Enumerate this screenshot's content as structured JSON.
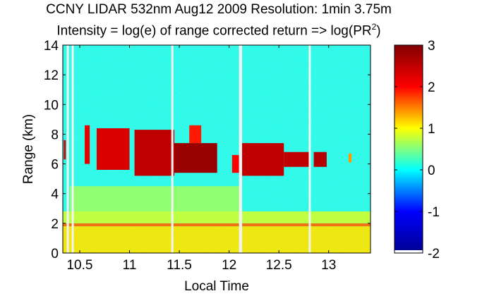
{
  "chart_data": {
    "type": "heatmap",
    "title": "CCNY LIDAR 532nm Aug12 2009 Resolution: 1min 3.75m",
    "subtitle_prefix": "Intensity = log(e) of range corrected return => log(PR",
    "subtitle_sup": "2",
    "subtitle_suffix": ")",
    "xlabel": "Local Time",
    "ylabel": "Range (km)",
    "xlim": [
      10.33,
      13.42
    ],
    "ylim": [
      0,
      14
    ],
    "xticks": [
      10.5,
      11,
      11.5,
      12,
      12.5,
      13
    ],
    "xtick_labels": [
      "10.5",
      "11",
      "11.5",
      "12",
      "12.5",
      "13"
    ],
    "yticks": [
      0,
      2,
      4,
      6,
      8,
      10,
      12,
      14
    ],
    "ytick_labels": [
      "0",
      "2",
      "4",
      "6",
      "8",
      "10",
      "12",
      "14"
    ],
    "colorbar": {
      "range": [
        -2,
        3
      ],
      "ticks": [
        -2,
        -1,
        0,
        1,
        2,
        3
      ],
      "tick_labels": [
        "-2",
        "-1",
        "0",
        "1",
        "2",
        "3"
      ],
      "colormap": "jet"
    },
    "colormap_colors": [
      "#00008f",
      "#0000ff",
      "#00ffff",
      "#ffff00",
      "#ff0000",
      "#800000"
    ],
    "background_level": 0.1,
    "data_gaps_local_time": [
      10.38,
      10.43,
      11.43,
      12.11,
      12.12,
      12.81
    ],
    "cloud_layers": [
      {
        "x": [
          10.34,
          10.36
        ],
        "y": [
          6.3,
          7.6
        ],
        "value": 2.4
      },
      {
        "x": [
          10.55,
          10.6
        ],
        "y": [
          6.0,
          8.6
        ],
        "value": 2.2
      },
      {
        "x": [
          10.67,
          11.0
        ],
        "y": [
          5.6,
          8.4
        ],
        "value": 2.3
      },
      {
        "x": [
          11.05,
          11.45
        ],
        "y": [
          5.2,
          8.3
        ],
        "value": 2.5
      },
      {
        "x": [
          11.45,
          11.88
        ],
        "y": [
          5.4,
          7.4
        ],
        "value": 2.8
      },
      {
        "x": [
          11.6,
          11.72
        ],
        "y": [
          7.4,
          8.6
        ],
        "value": 1.9
      },
      {
        "x": [
          12.03,
          12.1
        ],
        "y": [
          5.4,
          6.6
        ],
        "value": 2.0
      },
      {
        "x": [
          12.13,
          12.55
        ],
        "y": [
          5.2,
          7.4
        ],
        "value": 2.5
      },
      {
        "x": [
          12.55,
          12.8
        ],
        "y": [
          5.8,
          6.8
        ],
        "value": 2.5
      },
      {
        "x": [
          12.85,
          12.98
        ],
        "y": [
          5.8,
          6.8
        ],
        "value": 2.6
      },
      {
        "x": [
          13.2,
          13.23
        ],
        "y": [
          6.1,
          6.7
        ],
        "value": 1.4
      }
    ],
    "aerosol_layers": [
      {
        "x": [
          10.33,
          13.42
        ],
        "y": [
          0,
          1.8
        ],
        "value": 1.1
      },
      {
        "x": [
          10.33,
          13.42
        ],
        "y": [
          1.8,
          2.0
        ],
        "value": 1.6
      },
      {
        "x": [
          10.33,
          13.42
        ],
        "y": [
          2.0,
          2.8
        ],
        "value": 0.8
      },
      {
        "x": [
          10.4,
          12.1
        ],
        "y": [
          2.8,
          4.5
        ],
        "value": 0.6
      }
    ]
  }
}
